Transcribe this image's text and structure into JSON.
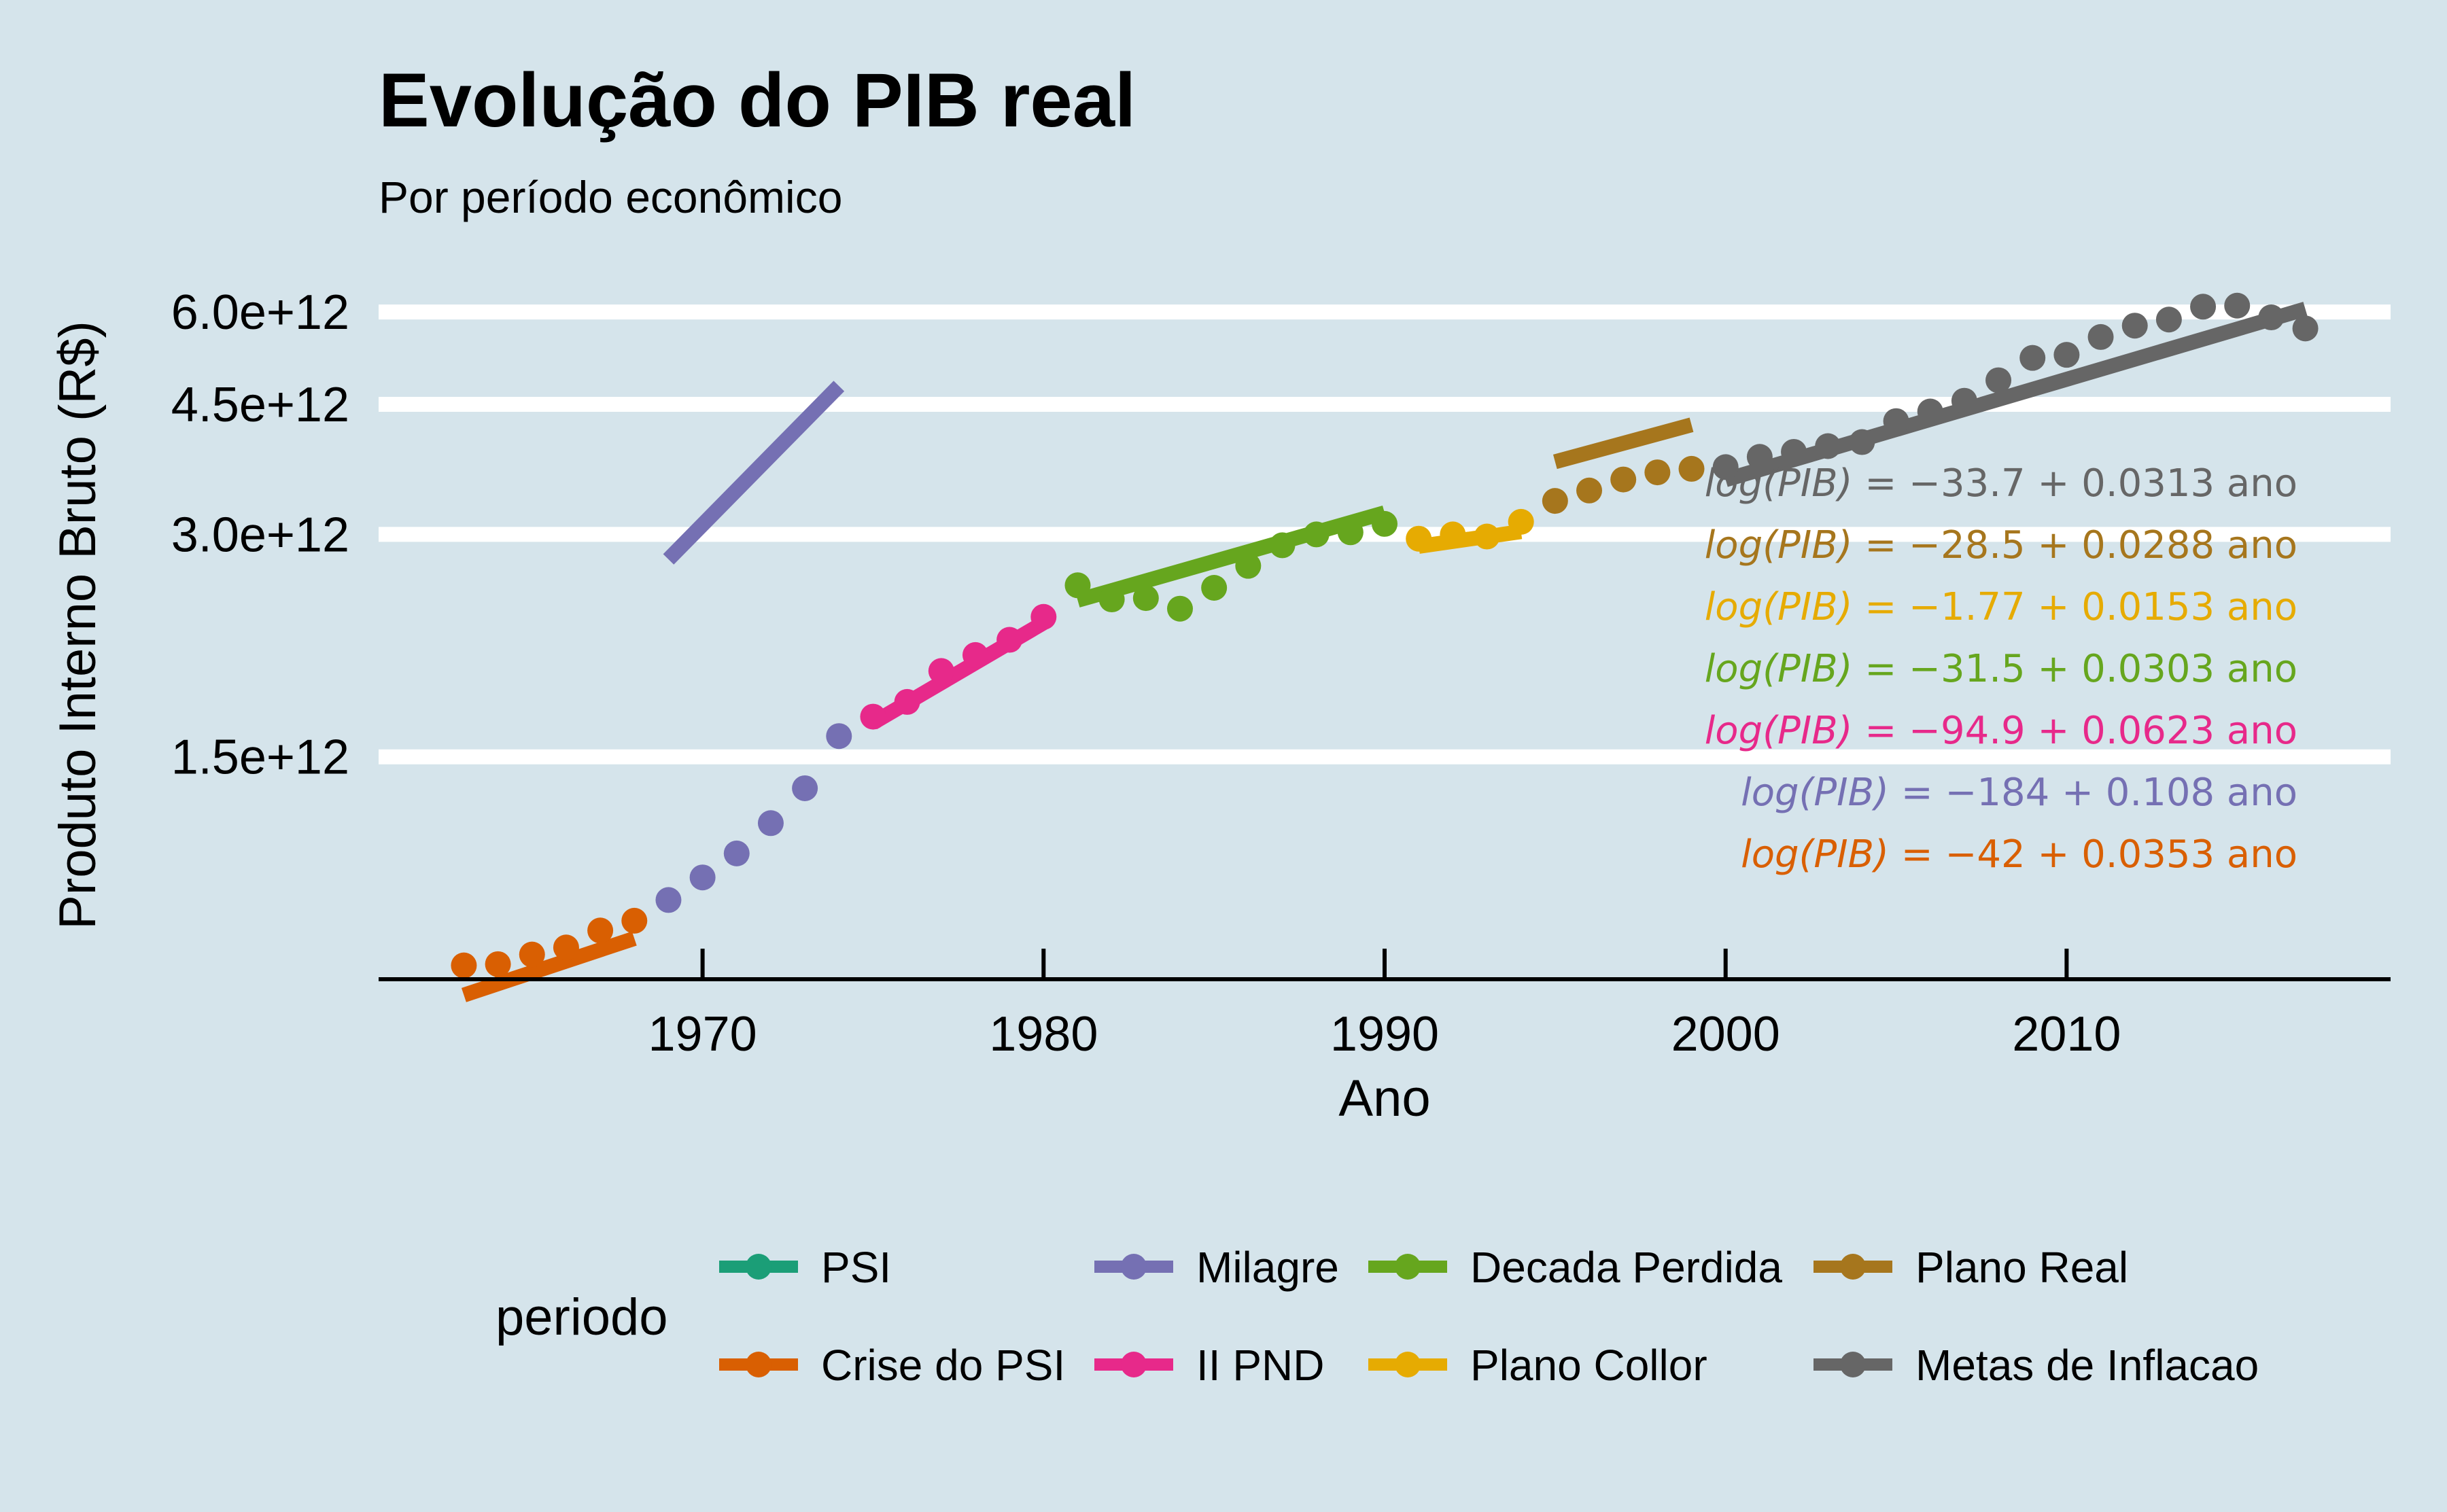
{
  "chart_data": {
    "type": "scatter",
    "title": "Evolução do PIB real",
    "subtitle": "Por período econômico",
    "xlabel": "Ano",
    "ylabel": "Produto Interno Bruto (R$)",
    "y_scale": "log",
    "xlim": [
      1960.5,
      2019.5
    ],
    "ylim": [
      750000000000.0,
      6800000000000.0
    ],
    "x_ticks": [
      1970,
      1980,
      1990,
      2000,
      2010
    ],
    "x_tick_labels": [
      "1970",
      "1980",
      "1990",
      "2000",
      "2010"
    ],
    "y_ticks": [
      1500000000000.0,
      3000000000000.0,
      4500000000000.0,
      6000000000000.0
    ],
    "y_tick_labels": [
      "1.5e+12",
      "3.0e+12",
      "4.5e+12",
      "6.0e+12"
    ],
    "grid": "horizontal major only",
    "legend": {
      "title": "periodo",
      "position": "bottom"
    },
    "series": [
      {
        "name": "PSI",
        "color": "#1b9e77",
        "x": [],
        "y": [],
        "fit": null
      },
      {
        "name": "Crise do PSI",
        "color": "#d95f02",
        "x": [
          1963,
          1964,
          1965,
          1966,
          1967,
          1968
        ],
        "y": [
          783000000000.0,
          786000000000.0,
          810000000000.0,
          828000000000.0,
          873000000000.0,
          900000000000.0
        ],
        "fit": {
          "intercept": -42,
          "slope": 0.0353,
          "x_range": [
            1963,
            1968
          ]
        }
      },
      {
        "name": "Milagre",
        "color": "#7570b3",
        "x": [
          1969,
          1970,
          1971,
          1972,
          1973,
          1974
        ],
        "y": [
          960000000000.0,
          1030000000000.0,
          1110000000000.0,
          1220000000000.0,
          1360000000000.0,
          1600000000000.0
        ],
        "fit": {
          "intercept": -184,
          "slope": 0.108,
          "x_range": [
            1969,
            1974
          ]
        }
      },
      {
        "name": "II PND",
        "color": "#e7298a",
        "x": [
          1975,
          1976,
          1977,
          1978,
          1979,
          1980
        ],
        "y": [
          1700000000000.0,
          1780000000000.0,
          1960000000000.0,
          2060000000000.0,
          2160000000000.0,
          2320000000000.0
        ],
        "fit": {
          "intercept": -94.9,
          "slope": 0.0623,
          "x_range": [
            1975,
            1980
          ]
        }
      },
      {
        "name": "Decada Perdida",
        "color": "#66a61e",
        "x": [
          1981,
          1982,
          1983,
          1984,
          1985,
          1986,
          1987,
          1988,
          1989,
          1990
        ],
        "y": [
          2560000000000.0,
          2450000000000.0,
          2460000000000.0,
          2380000000000.0,
          2540000000000.0,
          2720000000000.0,
          2900000000000.0,
          3000000000000.0,
          3020000000000.0,
          3100000000000.0
        ],
        "fit": {
          "intercept": -31.5,
          "slope": 0.0303,
          "x_range": [
            1981,
            1990
          ]
        }
      },
      {
        "name": "Plano Collor",
        "color": "#e6ab02",
        "x": [
          1991,
          1992,
          1993,
          1994
        ],
        "y": [
          2960000000000.0,
          3000000000000.0,
          2980000000000.0,
          3120000000000.0
        ],
        "fit": {
          "intercept": -1.77,
          "slope": 0.0153,
          "x_range": [
            1991,
            1994
          ]
        }
      },
      {
        "name": "Plano Real",
        "color": "#a6761d",
        "x": [
          1995,
          1996,
          1997,
          1998,
          1999
        ],
        "y": [
          3330000000000.0,
          3440000000000.0,
          3560000000000.0,
          3640000000000.0,
          3680000000000.0
        ],
        "fit": {
          "intercept": -28.5,
          "slope": 0.0288,
          "x_range": [
            1995,
            1999
          ]
        }
      },
      {
        "name": "Metas de Inflacao",
        "color": "#666666",
        "x": [
          2000,
          2001,
          2002,
          2003,
          2004,
          2005,
          2006,
          2007,
          2008,
          2009,
          2010,
          2011,
          2012,
          2013,
          2014,
          2015,
          2016,
          2017
        ],
        "y": [
          3700000000000.0,
          3820000000000.0,
          3880000000000.0,
          3950000000000.0,
          4000000000000.0,
          4270000000000.0,
          4400000000000.0,
          4550000000000.0,
          4850000000000.0,
          5200000000000.0,
          5250000000000.0,
          5550000000000.0,
          5750000000000.0,
          5860000000000.0,
          6100000000000.0,
          6120000000000.0,
          5900000000000.0,
          5700000000000.0
        ],
        "fit": {
          "intercept": -33.7,
          "slope": 0.0313,
          "x_range": [
            2000,
            2017
          ]
        }
      }
    ],
    "annotations": [
      {
        "series": "Metas de Inflacao",
        "lhs": "log(PIB)",
        "rhs": "= −33.7 + 0.0313 ano"
      },
      {
        "series": "Plano Real",
        "lhs": "log(PIB)",
        "rhs": "= −28.5 + 0.0288 ano"
      },
      {
        "series": "Plano Collor",
        "lhs": "log(PIB)",
        "rhs": "= −1.77 + 0.0153 ano"
      },
      {
        "series": "Decada Perdida",
        "lhs": "log(PIB)",
        "rhs": "= −31.5 + 0.0303 ano"
      },
      {
        "series": "II PND",
        "lhs": "log(PIB)",
        "rhs": "= −94.9 + 0.0623 ano"
      },
      {
        "series": "Milagre",
        "lhs": "log(PIB)",
        "rhs": "= −184 + 0.108 ano"
      },
      {
        "series": "Crise do PSI",
        "lhs": "log(PIB)",
        "rhs": "= −42 + 0.0353 ano"
      }
    ],
    "legend_order": [
      "PSI",
      "Milagre",
      "Decada Perdida",
      "Plano Real",
      "Crise do PSI",
      "II PND",
      "Plano Collor",
      "Metas de Inflacao"
    ]
  }
}
